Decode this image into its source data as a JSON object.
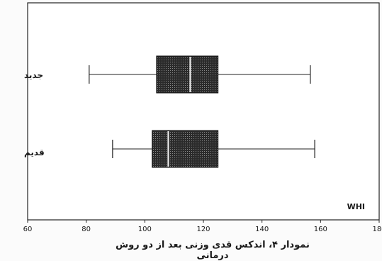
{
  "chart_data": {
    "type": "boxplot",
    "orientation": "horizontal",
    "title": "",
    "xlabel": "",
    "ylabel": "",
    "xlim": [
      60,
      180
    ],
    "xticks": [
      60,
      80,
      100,
      120,
      140,
      160,
      180
    ],
    "grid": false,
    "corner_label": "WHI",
    "caption": "نمودار ۴، اندکس قدی وزنی بعد از دو روش درمانی",
    "series": [
      {
        "name": "جدید",
        "min": 81,
        "q1": 104,
        "median": 115.5,
        "q3": 125,
        "max": 156.5
      },
      {
        "name": "قدیم",
        "min": 89,
        "q1": 102.5,
        "median": 108,
        "q3": 125,
        "max": 158
      }
    ],
    "colors": {
      "box": "#2b2b2b",
      "line": "#222222",
      "median": "#f4f4f4",
      "background": "#fbfbfb"
    }
  }
}
